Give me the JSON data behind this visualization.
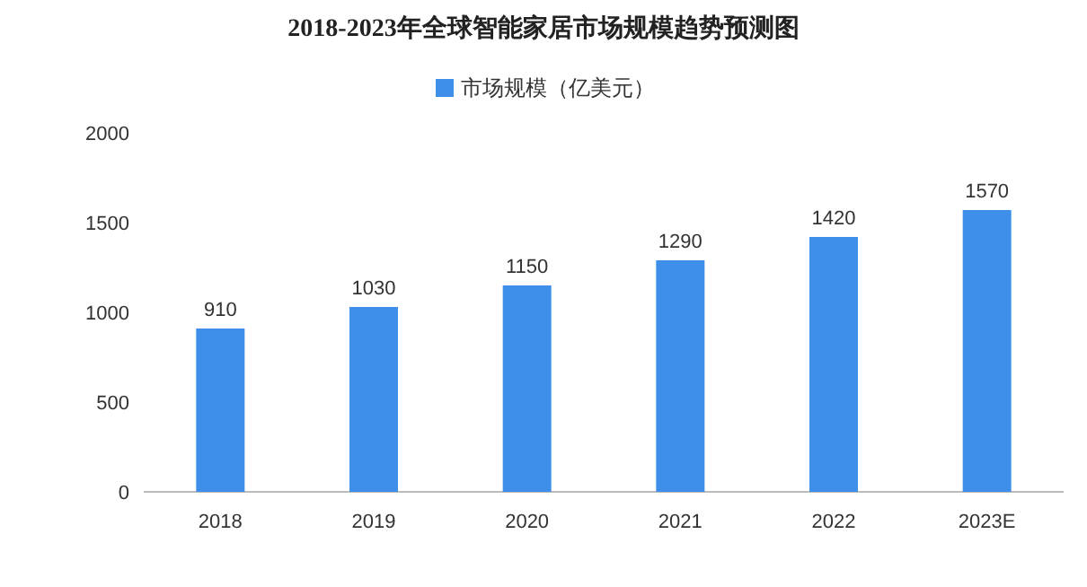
{
  "chart_data": {
    "type": "bar",
    "title": "2018-2023年全球智能家居市场规模趋势预测图",
    "categories": [
      "2018",
      "2019",
      "2020",
      "2021",
      "2022",
      "2023E"
    ],
    "series": [
      {
        "name": "市场规模（亿美元）",
        "color": "#3d8fea",
        "values": [
          910,
          1030,
          1150,
          1290,
          1420,
          1570
        ]
      }
    ],
    "ylim": [
      0,
      2000
    ],
    "yticks": [
      0,
      500,
      1000,
      1500,
      2000
    ],
    "data_labels": true,
    "legend": "top"
  }
}
